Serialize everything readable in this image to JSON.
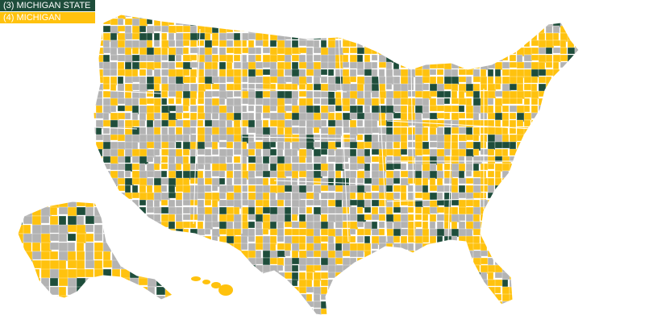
{
  "legend": [
    {
      "label": "(3) MICHIGAN STATE",
      "color": "#1e4d3b"
    },
    {
      "label": "(4) MICHIGAN",
      "color": "#ffc20e"
    }
  ],
  "colors": {
    "michigan_state": "#1e4d3b",
    "michigan": "#ffc20e",
    "other": "#b3b3b3",
    "border": "#ffffff"
  }
}
